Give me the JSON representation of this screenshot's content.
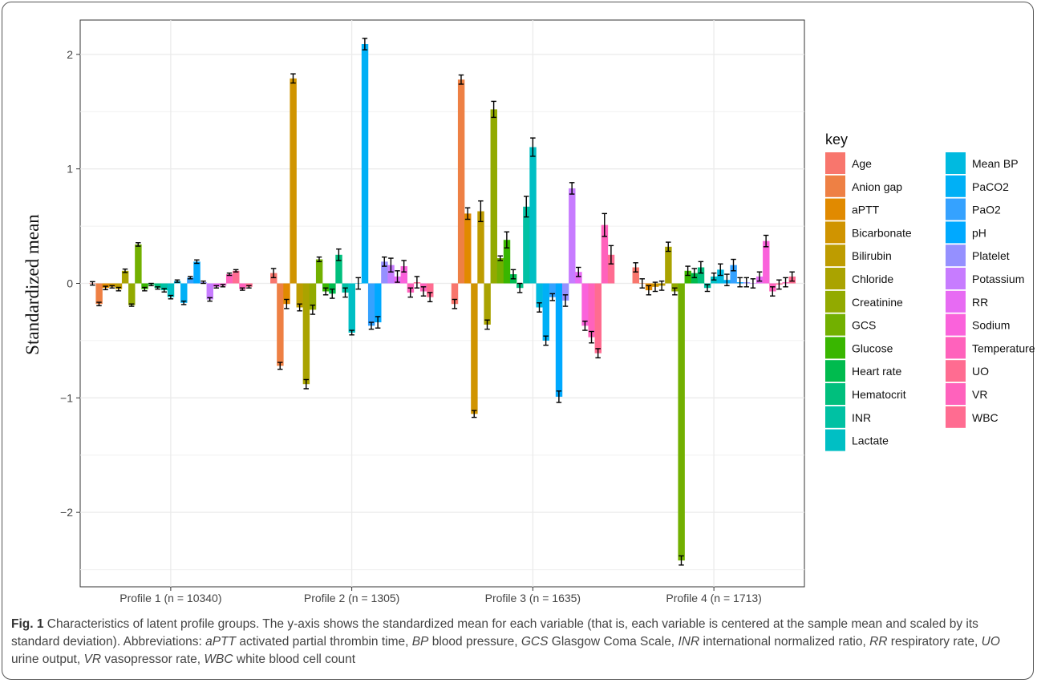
{
  "chart_data": {
    "type": "bar",
    "ylabel": "Standardized mean",
    "xlabel": "",
    "ylim": [
      -2.65,
      2.3
    ],
    "yticks": [
      -2,
      -1,
      0,
      1,
      2
    ],
    "grid": true,
    "legend_position": "right",
    "legend_title": "key",
    "categories": [
      "Profile 1 (n = 10340)",
      "Profile 2 (n = 1305)",
      "Profile 3 (n = 1635)",
      "Profile 4 (n = 1713)"
    ],
    "series": [
      {
        "name": "Age",
        "color": "#F8766D",
        "values": [
          0.0,
          0.09,
          -0.18,
          0.14
        ],
        "errors": [
          0.015,
          0.04,
          0.04,
          0.04
        ]
      },
      {
        "name": "Anion gap",
        "color": "#EE8044",
        "values": [
          -0.18,
          -0.72,
          1.78,
          0.0
        ],
        "errors": [
          0.015,
          0.03,
          0.04,
          0.04
        ]
      },
      {
        "name": "aPTT",
        "color": "#E18A00",
        "values": [
          -0.04,
          -0.18,
          0.61,
          -0.06
        ],
        "errors": [
          0.015,
          0.04,
          0.05,
          0.04
        ]
      },
      {
        "name": "Bicarbonate",
        "color": "#D09400",
        "values": [
          -0.03,
          1.79,
          -1.14,
          -0.03
        ],
        "errors": [
          0.01,
          0.04,
          0.03,
          0.04
        ]
      },
      {
        "name": "Bilirubin",
        "color": "#BE9C00",
        "values": [
          -0.05,
          -0.21,
          0.63,
          -0.02
        ],
        "errors": [
          0.015,
          0.03,
          0.09,
          0.04
        ]
      },
      {
        "name": "Chloride",
        "color": "#AAA300",
        "values": [
          0.11,
          -0.88,
          -0.36,
          0.32
        ],
        "errors": [
          0.015,
          0.04,
          0.04,
          0.04
        ]
      },
      {
        "name": "Creatinine",
        "color": "#92AA00",
        "values": [
          -0.19,
          -0.23,
          1.52,
          -0.07
        ],
        "errors": [
          0.01,
          0.04,
          0.07,
          0.03
        ]
      },
      {
        "name": "GCS",
        "color": "#72B000",
        "values": [
          0.34,
          0.21,
          0.22,
          -2.42
        ],
        "errors": [
          0.015,
          0.02,
          0.02,
          0.04
        ]
      },
      {
        "name": "Glucose",
        "color": "#39B600",
        "values": [
          -0.05,
          -0.07,
          0.38,
          0.11
        ],
        "errors": [
          0.015,
          0.03,
          0.07,
          0.04
        ]
      },
      {
        "name": "Heart rate",
        "color": "#00BB4E",
        "values": [
          -0.01,
          -0.09,
          0.08,
          0.09
        ],
        "errors": [
          0.01,
          0.04,
          0.04,
          0.04
        ]
      },
      {
        "name": "Hematocrit",
        "color": "#00BF7D",
        "values": [
          -0.04,
          0.25,
          -0.04,
          0.14
        ],
        "errors": [
          0.01,
          0.05,
          0.04,
          0.05
        ]
      },
      {
        "name": "INR",
        "color": "#00C1A3",
        "values": [
          -0.06,
          -0.08,
          0.67,
          -0.04
        ],
        "errors": [
          0.015,
          0.04,
          0.09,
          0.03
        ]
      },
      {
        "name": "Lactate",
        "color": "#00BFC4",
        "values": [
          -0.12,
          -0.43,
          1.19,
          0.06
        ],
        "errors": [
          0.015,
          0.02,
          0.08,
          0.03
        ]
      },
      {
        "name": "Mean BP",
        "color": "#00BAE0",
        "values": [
          0.02,
          0.0,
          -0.21,
          0.12
        ],
        "errors": [
          0.01,
          0.05,
          0.04,
          0.05
        ]
      },
      {
        "name": "PaCO2",
        "color": "#00B0F6",
        "values": [
          -0.17,
          2.09,
          -0.5,
          0.03
        ],
        "errors": [
          0.015,
          0.05,
          0.04,
          0.05
        ]
      },
      {
        "name": "PaO2",
        "color": "#35A2FF",
        "values": [
          0.05,
          -0.37,
          -0.12,
          0.16
        ],
        "errors": [
          0.01,
          0.03,
          0.03,
          0.05
        ]
      },
      {
        "name": "pH",
        "color": "#00A9FF",
        "values": [
          0.19,
          -0.34,
          -0.99,
          0.01
        ],
        "errors": [
          0.015,
          0.05,
          0.05,
          0.04
        ]
      },
      {
        "name": "Platelet",
        "color": "#9590FF",
        "values": [
          0.01,
          0.19,
          -0.15,
          0.01
        ],
        "errors": [
          0.01,
          0.04,
          0.05,
          0.04
        ]
      },
      {
        "name": "Potassium",
        "color": "#C77CFF",
        "values": [
          -0.14,
          0.16,
          0.83,
          0.0
        ],
        "errors": [
          0.015,
          0.06,
          0.05,
          0.04
        ]
      },
      {
        "name": "RR",
        "color": "#E76BF3",
        "values": [
          -0.03,
          0.06,
          0.1,
          0.06
        ],
        "errors": [
          0.01,
          0.05,
          0.04,
          0.04
        ]
      },
      {
        "name": "Sodium",
        "color": "#FA62DB",
        "values": [
          -0.02,
          0.15,
          -0.37,
          0.37
        ],
        "errors": [
          0.01,
          0.05,
          0.04,
          0.05
        ]
      },
      {
        "name": "Temperature",
        "color": "#FF62BC",
        "values": [
          0.08,
          -0.08,
          -0.47,
          -0.07
        ],
        "errors": [
          0.01,
          0.04,
          0.05,
          0.04
        ]
      },
      {
        "name": "UO",
        "color": "#FF6C91",
        "values": [
          0.11,
          0.01,
          -0.61,
          -0.01
        ],
        "errors": [
          0.01,
          0.05,
          0.04,
          0.04
        ]
      },
      {
        "name": "VR",
        "color": "#FF62BC",
        "values": [
          -0.05,
          -0.07,
          0.51,
          0.01
        ],
        "errors": [
          0.01,
          0.04,
          0.1,
          0.04
        ]
      },
      {
        "name": "WBC",
        "color": "#FF6C91",
        "values": [
          -0.03,
          -0.12,
          0.25,
          0.06
        ],
        "errors": [
          0.01,
          0.04,
          0.08,
          0.04
        ]
      }
    ]
  },
  "caption": {
    "fig_label": "Fig. 1",
    "text_1": " Characteristics of latent profile groups. The y-axis shows the standardized mean for each variable (that is, each variable is centered at the sample mean and scaled by its standard deviation). Abbreviations: ",
    "abbr_1": "aPTT",
    "text_2": " activated partial thrombin time, ",
    "abbr_2": "BP",
    "text_3": " blood pressure, ",
    "abbr_3": "GCS",
    "text_4": " Glasgow Coma Scale, ",
    "abbr_4": "INR",
    "text_5": " international normalized ratio, ",
    "abbr_5": "RR",
    "text_6": " respiratory rate, ",
    "abbr_6": "UO",
    "text_7": " urine output, ",
    "abbr_7": "VR",
    "text_8": " vasopressor rate, ",
    "abbr_8": "WBC",
    "text_9": " white blood cell count"
  }
}
